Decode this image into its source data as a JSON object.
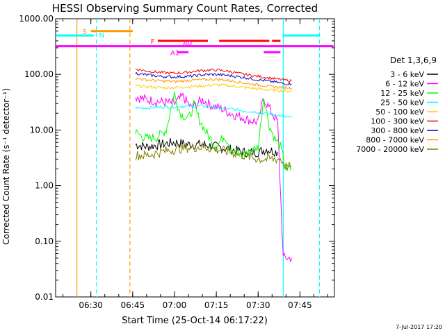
{
  "chart_data": {
    "type": "line",
    "title": "HESSI Observing Summary Count Rates, Corrected",
    "xlabel": "Start Time (25-Oct-14 06:17:22)",
    "ylabel": "Corrected Count Rate (s⁻¹ detector⁻¹)",
    "yscale": "log",
    "ylim": [
      0.01,
      1000
    ],
    "xlim": [
      "06:17:22",
      "07:57:22"
    ],
    "x_ticks": [
      "06:30",
      "06:45",
      "07:00",
      "07:15",
      "07:30",
      "07:45"
    ],
    "y_ticks": [
      "0.01",
      "0.10",
      "1.00",
      "10.00",
      "100.00",
      "1000.00"
    ],
    "grid": false,
    "legend_title": "Det 1,3,6,9",
    "legend_position": "right",
    "footer_date": "7-Jul-2017 17:20",
    "data_gap": [
      "06:40",
      "06:45"
    ],
    "series": [
      {
        "name": "3 - 6 keV",
        "color": "#000000",
        "points": [
          [
            "06:46",
            5.5
          ],
          [
            "06:50",
            5.0
          ],
          [
            "06:55",
            5.5
          ],
          [
            "07:00",
            6.0
          ],
          [
            "07:05",
            5.5
          ],
          [
            "07:10",
            5.5
          ],
          [
            "07:15",
            5.0
          ],
          [
            "07:20",
            4.5
          ],
          [
            "07:25",
            4.0
          ],
          [
            "07:30",
            4.0
          ],
          [
            "07:33",
            4.5
          ],
          [
            "07:37",
            4.0
          ]
        ]
      },
      {
        "name": "6 - 12 keV",
        "color": "#ff00ff",
        "points": [
          [
            "06:46",
            40
          ],
          [
            "06:50",
            35
          ],
          [
            "06:55",
            32
          ],
          [
            "07:00",
            30
          ],
          [
            "07:03",
            40
          ],
          [
            "07:06",
            25
          ],
          [
            "07:10",
            35
          ],
          [
            "07:13",
            28
          ],
          [
            "07:17",
            24
          ],
          [
            "07:20",
            20
          ],
          [
            "07:24",
            17
          ],
          [
            "07:27",
            15
          ],
          [
            "07:30",
            14
          ],
          [
            "07:32",
            38
          ],
          [
            "07:35",
            20
          ],
          [
            "07:37",
            14
          ],
          [
            "07:39",
            0.05
          ],
          [
            "07:42",
            0.05
          ]
        ]
      },
      {
        "name": "12 - 25 keV",
        "color": "#00ff00",
        "points": [
          [
            "06:46",
            9
          ],
          [
            "06:50",
            7
          ],
          [
            "06:54",
            7.5
          ],
          [
            "06:57",
            10
          ],
          [
            "07:00",
            45
          ],
          [
            "07:02",
            20
          ],
          [
            "07:05",
            16
          ],
          [
            "07:07",
            28
          ],
          [
            "07:09",
            15
          ],
          [
            "07:12",
            8
          ],
          [
            "07:15",
            5
          ],
          [
            "07:18",
            8
          ],
          [
            "07:21",
            4
          ],
          [
            "07:24",
            3.5
          ],
          [
            "07:27",
            4
          ],
          [
            "07:30",
            5
          ],
          [
            "07:32",
            40
          ],
          [
            "07:34",
            12
          ],
          [
            "07:36",
            7
          ],
          [
            "07:38",
            5
          ],
          [
            "07:40",
            2
          ],
          [
            "07:42",
            2
          ]
        ]
      },
      {
        "name": "25 - 50 keV",
        "color": "#00ffff",
        "points": [
          [
            "06:46",
            25
          ],
          [
            "06:50",
            25
          ],
          [
            "06:55",
            26
          ],
          [
            "07:00",
            26
          ],
          [
            "07:05",
            27
          ],
          [
            "07:10",
            27
          ],
          [
            "07:15",
            25
          ],
          [
            "07:20",
            24
          ],
          [
            "07:25",
            22
          ],
          [
            "07:30",
            21
          ],
          [
            "07:35",
            19
          ],
          [
            "07:38",
            18
          ],
          [
            "07:40",
            17
          ],
          [
            "07:42",
            17
          ]
        ]
      },
      {
        "name": "50 - 100 keV",
        "color": "#ffcc00",
        "points": [
          [
            "06:46",
            62
          ],
          [
            "06:50",
            60
          ],
          [
            "06:55",
            58
          ],
          [
            "07:00",
            58
          ],
          [
            "07:05",
            60
          ],
          [
            "07:10",
            62
          ],
          [
            "07:15",
            65
          ],
          [
            "07:20",
            62
          ],
          [
            "07:25",
            58
          ],
          [
            "07:30",
            55
          ],
          [
            "07:35",
            52
          ],
          [
            "07:40",
            50
          ],
          [
            "07:42",
            50
          ]
        ]
      },
      {
        "name": "100 - 300 keV",
        "color": "#ff0000",
        "points": [
          [
            "06:46",
            125
          ],
          [
            "06:50",
            115
          ],
          [
            "06:55",
            108
          ],
          [
            "07:00",
            105
          ],
          [
            "07:05",
            110
          ],
          [
            "07:10",
            118
          ],
          [
            "07:15",
            120
          ],
          [
            "07:20",
            112
          ],
          [
            "07:25",
            100
          ],
          [
            "07:30",
            92
          ],
          [
            "07:35",
            85
          ],
          [
            "07:40",
            78
          ],
          [
            "07:42",
            76
          ]
        ]
      },
      {
        "name": "300 - 800 keV",
        "color": "#0000c0",
        "points": [
          [
            "06:46",
            105
          ],
          [
            "06:50",
            98
          ],
          [
            "06:55",
            92
          ],
          [
            "07:00",
            90
          ],
          [
            "07:05",
            92
          ],
          [
            "07:10",
            98
          ],
          [
            "07:15",
            100
          ],
          [
            "07:20",
            95
          ],
          [
            "07:25",
            88
          ],
          [
            "07:30",
            80
          ],
          [
            "07:35",
            74
          ],
          [
            "07:40",
            68
          ],
          [
            "07:42",
            67
          ]
        ]
      },
      {
        "name": "800 - 7000 keV",
        "color": "#ff9900",
        "points": [
          [
            "06:46",
            85
          ],
          [
            "06:50",
            80
          ],
          [
            "06:55",
            76
          ],
          [
            "07:00",
            74
          ],
          [
            "07:05",
            78
          ],
          [
            "07:10",
            80
          ],
          [
            "07:15",
            82
          ],
          [
            "07:20",
            77
          ],
          [
            "07:25",
            70
          ],
          [
            "07:30",
            65
          ],
          [
            "07:35",
            60
          ],
          [
            "07:40",
            58
          ],
          [
            "07:42",
            57
          ]
        ]
      },
      {
        "name": "7000 - 20000 keV",
        "color": "#808000",
        "points": [
          [
            "06:46",
            3.5
          ],
          [
            "06:50",
            3.5
          ],
          [
            "06:55",
            4.0
          ],
          [
            "07:00",
            4.5
          ],
          [
            "07:05",
            4.8
          ],
          [
            "07:10",
            5.0
          ],
          [
            "07:15",
            4.5
          ],
          [
            "07:20",
            4.0
          ],
          [
            "07:25",
            3.5
          ],
          [
            "07:30",
            3.0
          ],
          [
            "07:35",
            3.0
          ],
          [
            "07:38",
            3.0
          ],
          [
            "07:40",
            2.2
          ],
          [
            "07:42",
            2.2
          ]
        ]
      }
    ],
    "flag_bars": [
      {
        "label": "S",
        "color": "#ff9900",
        "segments": [
          [
            "06:30",
            "06:45"
          ]
        ],
        "level": 600
      },
      {
        "label": "N",
        "color": "#00ffff",
        "segments": [
          [
            "06:17",
            "06:31"
          ],
          [
            "07:39",
            "07:52"
          ]
        ],
        "level": 500
      },
      {
        "label": "F",
        "color": "#ff0000",
        "segments": [
          [
            "06:54",
            "07:12"
          ],
          [
            "07:16",
            "07:34"
          ],
          [
            "07:35",
            "07:38"
          ]
        ],
        "level": 400
      },
      {
        "label": "A0",
        "color": "#ff00ff",
        "segments": [
          [
            "06:17",
            "07:57"
          ]
        ],
        "level": 320
      },
      {
        "label": "A1",
        "color": "#ff00ff",
        "segments": [
          [
            "07:01",
            "07:05"
          ],
          [
            "07:32",
            "07:36"
          ],
          [
            "07:36",
            "07:38"
          ]
        ],
        "level": 250
      }
    ],
    "vertical_markers": [
      {
        "time": "06:25",
        "color": "#ff9900",
        "style": "solid"
      },
      {
        "time": "06:32",
        "color": "#00ffff",
        "style": "dashed"
      },
      {
        "time": "06:44",
        "color": "#ff9900",
        "style": "dashed"
      },
      {
        "time": "07:39",
        "color": "#00ffff",
        "style": "solid"
      },
      {
        "time": "07:52",
        "color": "#00ffff",
        "style": "dashed"
      }
    ]
  }
}
